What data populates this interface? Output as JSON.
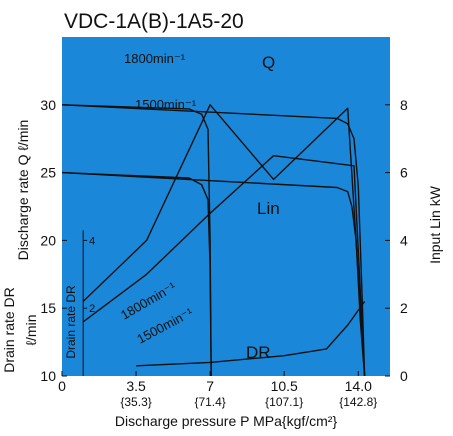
{
  "colors": {
    "plot_bg": "#1a87d9",
    "curve": "#111111",
    "gridline": "#111111",
    "text": "#111111"
  },
  "chart_data": {
    "type": "line",
    "title": "VDC-1A(B)-1A5-20",
    "xlabel": "Discharge pressure P  MPa{kgf/cm²}",
    "ylabel_left": "Discharge rate Q  ℓ/min",
    "ylabel_left_lower_line1": "Drain rate DR",
    "ylabel_left_lower_line2": "ℓ/min",
    "ylabel_inner": "Drain rate DR",
    "ylabel_right": "Input Lin kW",
    "xlim": [
      0,
      15.5
    ],
    "ylim": [
      10,
      35
    ],
    "right_ylim": [
      0,
      10
    ],
    "x_ticks": [
      {
        "value": 0,
        "label": "0",
        "sub": ""
      },
      {
        "value": 3.5,
        "label": "3.5",
        "sub": "{35.3}"
      },
      {
        "value": 7,
        "label": "7",
        "sub": "{71.4}"
      },
      {
        "value": 10.5,
        "label": "10.5",
        "sub": "{107.1}"
      },
      {
        "value": 14,
        "label": "14.0",
        "sub": "{142.8}"
      }
    ],
    "y_ticks": [
      {
        "value": 10,
        "label": "10"
      },
      {
        "value": 15,
        "label": "15"
      },
      {
        "value": 20,
        "label": "20"
      },
      {
        "value": 25,
        "label": "25"
      },
      {
        "value": 30,
        "label": "30"
      }
    ],
    "right_ticks": [
      {
        "value": 0,
        "label": "0"
      },
      {
        "value": 2,
        "label": "2"
      },
      {
        "value": 4,
        "label": "4"
      },
      {
        "value": 6,
        "label": "6"
      },
      {
        "value": 8,
        "label": "8"
      }
    ],
    "dr_inner_ticks": [
      {
        "value": 2,
        "label": "2"
      },
      {
        "value": 4,
        "label": "4"
      }
    ],
    "dr_inner_axis_x": 1,
    "grid": false,
    "series": [
      {
        "name": "Q 1800min⁻¹",
        "axis": "left",
        "x": [
          0,
          6.0,
          6.6,
          6.9,
          7.0,
          7.05
        ],
        "y": [
          30,
          29.7,
          29.3,
          28.2,
          20,
          10
        ]
      },
      {
        "name": "Q 1500min⁻¹",
        "axis": "left",
        "x": [
          0,
          6.0,
          6.6,
          6.9,
          7.0,
          7.05
        ],
        "y": [
          25,
          24.6,
          24.1,
          23.0,
          18,
          10
        ]
      },
      {
        "name": "Q (high pressure)",
        "axis": "left",
        "x": [
          0,
          13.0,
          13.5,
          13.8,
          14.0,
          14.2,
          14.3
        ],
        "y": [
          30,
          29.0,
          28.6,
          27.5,
          24,
          15,
          10
        ]
      },
      {
        "name": "Q (high pressure, 1500)",
        "axis": "left",
        "x": [
          0,
          13.0,
          13.5,
          13.7,
          13.9,
          14.1,
          14.3
        ],
        "y": [
          25,
          23.9,
          23.6,
          22.5,
          20,
          14,
          10
        ]
      },
      {
        "name": "Lin 1800min⁻¹",
        "axis": "right",
        "x": [
          1.0,
          4.0,
          7.0,
          10.0,
          13.5,
          14.3
        ],
        "y": [
          2.2,
          4.0,
          8.0,
          5.8,
          7.9,
          0
        ]
      },
      {
        "name": "Lin 1500min⁻¹",
        "axis": "right",
        "x": [
          1.0,
          4.0,
          7.0,
          10.0,
          13.8,
          14.3
        ],
        "y": [
          1.6,
          3.0,
          4.8,
          6.5,
          6.2,
          0
        ]
      },
      {
        "name": "DR",
        "axis": "dr",
        "x": [
          3.5,
          7.0,
          10.5,
          12.5,
          13.5,
          14.3
        ],
        "y": [
          0.3,
          0.4,
          0.6,
          0.8,
          1.5,
          2.2
        ]
      }
    ],
    "annotations": [
      {
        "text": "1800min⁻¹",
        "near": "Q upper"
      },
      {
        "text": "Q",
        "near": "Q upper"
      },
      {
        "text": "1500min⁻¹",
        "near": "Q lower"
      },
      {
        "text": "Lin",
        "near": "Lin curves"
      },
      {
        "text": "1800min⁻¹",
        "near": "Lin upper",
        "rotated": true
      },
      {
        "text": "1500min⁻¹",
        "near": "Lin lower",
        "rotated": true
      },
      {
        "text": "DR",
        "near": "DR curve"
      }
    ]
  }
}
